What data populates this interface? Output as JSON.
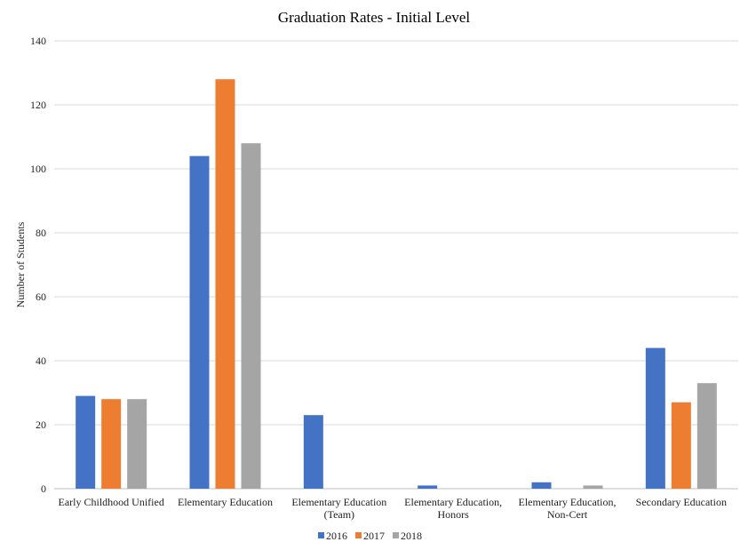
{
  "chart_data": {
    "type": "bar",
    "title": "Graduation Rates - Initial Level",
    "ylabel": "Number of Students",
    "xlabel": "",
    "ylim": [
      0,
      140
    ],
    "yticks": [
      0,
      20,
      40,
      60,
      80,
      100,
      120,
      140
    ],
    "grid": true,
    "legend_position": "bottom",
    "categories": [
      [
        "Early Childhood Unified"
      ],
      [
        "Elementary Education"
      ],
      [
        "Elementary Education",
        "(Team)"
      ],
      [
        "Elementary Education,",
        "Honors"
      ],
      [
        "Elementary Education,",
        "Non-Cert"
      ],
      [
        "Secondary Education"
      ]
    ],
    "series": [
      {
        "name": "2016",
        "color": "#4472c4",
        "values": [
          29,
          104,
          23,
          1,
          2,
          44
        ]
      },
      {
        "name": "2017",
        "color": "#ed7d31",
        "values": [
          28,
          128,
          0,
          0,
          0,
          27
        ]
      },
      {
        "name": "2018",
        "color": "#a5a5a5",
        "values": [
          28,
          108,
          0,
          0,
          1,
          33
        ]
      }
    ]
  }
}
